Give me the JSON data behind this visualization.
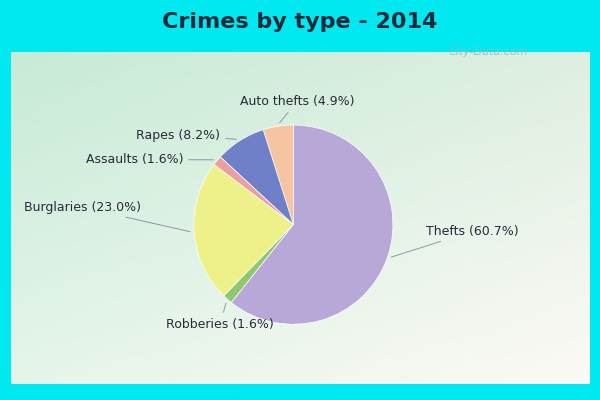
{
  "title": "Crimes by type - 2014",
  "ordered_labels": [
    "Auto thefts",
    "Rapes",
    "Assaults",
    "Burglaries",
    "Robberies",
    "Thefts"
  ],
  "ordered_pcts": [
    4.9,
    8.2,
    1.6,
    23.0,
    1.6,
    60.7
  ],
  "ordered_colors": [
    "#f5c4a0",
    "#7080c8",
    "#e8a0a0",
    "#eef08a",
    "#90c870",
    "#b8a8d8"
  ],
  "label_texts": [
    "Auto thefts (4.9%)",
    "Rapes (8.2%)",
    "Assaults (1.6%)",
    "Burglaries (23.0%)",
    "Robberies (1.6%)",
    "Thefts (60.7%)"
  ],
  "background_cyan": "#00e8f0",
  "background_main": "#c8e8d8",
  "title_fontsize": 16,
  "label_fontsize": 9,
  "startangle": 90,
  "watermark": "City-Data.com"
}
